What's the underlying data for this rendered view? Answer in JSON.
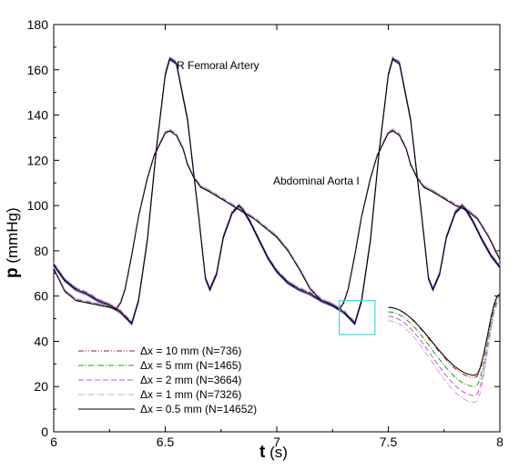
{
  "chart_data": {
    "type": "line",
    "xlabel": "t (s)",
    "xlabel_var": "t",
    "xlabel_unit": "(s)",
    "ylabel": "p (mmHg)",
    "ylabel_var": "p",
    "ylabel_unit": "(mmHg)",
    "xlim": [
      6,
      8
    ],
    "ylim": [
      0,
      180
    ],
    "xticks": [
      "6",
      "6.5",
      "7",
      "7.5",
      "8"
    ],
    "yticks": [
      "0",
      "20",
      "40",
      "60",
      "80",
      "100",
      "120",
      "140",
      "160",
      "180"
    ],
    "grid": false,
    "legend_position": "bottom-left",
    "annotations": [
      {
        "text": "R Femoral Artery",
        "x": 6.56,
        "y": 160
      },
      {
        "text": "Abdominal Aorta I",
        "x": 7.0,
        "y": 109
      }
    ],
    "femoral_base": {
      "x": [
        6.0,
        6.05,
        6.1,
        6.15,
        6.2,
        6.25,
        6.3,
        6.33,
        6.35,
        6.38,
        6.42,
        6.46,
        6.5,
        6.52,
        6.55,
        6.6,
        6.65,
        6.68,
        6.7,
        6.73,
        6.76,
        6.8,
        6.83,
        6.85,
        6.88,
        6.92,
        6.96,
        7.0,
        7.05,
        7.1,
        7.15,
        7.2,
        7.25,
        7.3,
        7.33,
        7.35,
        7.38,
        7.42,
        7.46,
        7.5,
        7.52,
        7.55,
        7.6,
        7.65,
        7.68,
        7.7,
        7.73,
        7.76,
        7.8,
        7.83,
        7.85,
        7.88,
        7.92,
        7.96,
        8.0
      ],
      "y": [
        74,
        67,
        63,
        61,
        58,
        56,
        53,
        50,
        48,
        58,
        85,
        125,
        158,
        165,
        163,
        138,
        95,
        68,
        63,
        70,
        86,
        97,
        100,
        98,
        93,
        85,
        77,
        71,
        66,
        63,
        61,
        58,
        56,
        53,
        50,
        48,
        58,
        85,
        125,
        158,
        165,
        163,
        138,
        95,
        68,
        63,
        70,
        86,
        97,
        100,
        98,
        93,
        85,
        78,
        73
      ]
    },
    "aorta": {
      "x": [
        6.0,
        6.05,
        6.1,
        6.15,
        6.2,
        6.25,
        6.28,
        6.3,
        6.32,
        6.35,
        6.38,
        6.42,
        6.45,
        6.48,
        6.5,
        6.52,
        6.55,
        6.58,
        6.6,
        6.63,
        6.66,
        6.7,
        6.75,
        6.8,
        6.85,
        6.9,
        6.95,
        7.0,
        7.05,
        7.1,
        7.15,
        7.2,
        7.25,
        7.28,
        7.3,
        7.32,
        7.35,
        7.38,
        7.42,
        7.45,
        7.48,
        7.5,
        7.52,
        7.55,
        7.58,
        7.6,
        7.63,
        7.66,
        7.7,
        7.75,
        7.8,
        7.85,
        7.9,
        7.95,
        8.0
      ],
      "y": [
        72,
        62,
        58,
        57,
        56,
        55,
        54,
        57,
        63,
        78,
        95,
        112,
        122,
        128,
        132,
        133,
        131,
        125,
        118,
        112,
        108,
        106,
        103,
        100,
        97,
        94,
        90,
        86,
        80,
        72,
        63,
        58,
        56,
        54,
        57,
        63,
        78,
        95,
        112,
        122,
        128,
        132,
        133,
        131,
        125,
        118,
        112,
        108,
        106,
        103,
        100,
        98,
        94,
        86,
        76
      ]
    },
    "series": [
      {
        "name": "Δx = 10 mm (N=736)",
        "color": "#a01818",
        "dash": "dashdotdot",
        "offset": 0
      },
      {
        "name": "Δx = 5 mm (N=1465)",
        "color": "#10a010",
        "dash": "dashdot",
        "offset": 0.3
      },
      {
        "name": "Δx = 2 mm (N=3664)",
        "color": "#d050c8",
        "dash": "dash",
        "offset": 0.6
      },
      {
        "name": "Δx = 1 mm (N=7326)",
        "color": "#c8a0e0",
        "dash": "dashdot",
        "offset": 0.9
      },
      {
        "name": "Δx = 0.5 mm (N=14652)",
        "color": "#000000",
        "dash": "solid",
        "offset": 0
      }
    ],
    "femoral_color": "#2020a0",
    "zoom_box": {
      "x": [
        7.28,
        7.44
      ],
      "y": [
        43,
        58
      ],
      "color": "#40d8d8"
    },
    "inset": {
      "x": [
        7.5,
        8.0
      ],
      "curves": [
        {
          "series": "Δx = 10 mm (N=736)",
          "y_start": 55,
          "y_min": 24,
          "y_end": 61
        },
        {
          "series": "Δx = 5 mm (N=1465)",
          "y_start": 53,
          "y_min": 20,
          "y_end": 60
        },
        {
          "series": "Δx = 2 mm (N=3664)",
          "y_start": 51,
          "y_min": 16,
          "y_end": 59
        },
        {
          "series": "Δx = 1 mm (N=7326)",
          "y_start": 49,
          "y_min": 13,
          "y_end": 58
        },
        {
          "series": "Δx = 0.5 mm (N=14652)",
          "y_start": 55,
          "y_min": 25,
          "y_end": 61
        }
      ]
    }
  }
}
